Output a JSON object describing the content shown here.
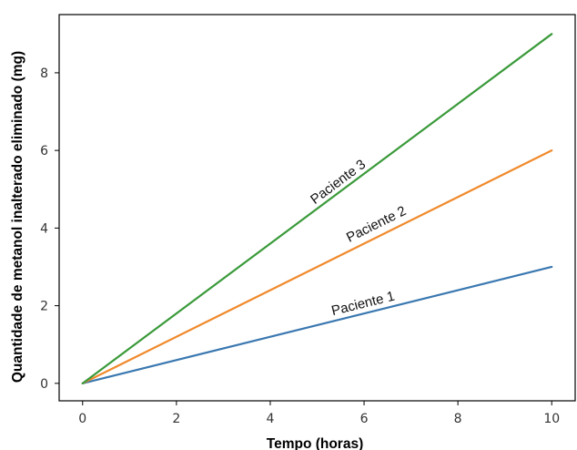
{
  "chart_data": {
    "type": "line",
    "title": "",
    "xlabel": "Tempo (horas)",
    "ylabel": "Quantidade de metanol inalterado eliminado (mg)",
    "xlim": [
      -0.5,
      10.5
    ],
    "ylim": [
      -0.45,
      9.5
    ],
    "xticks": [
      0,
      2,
      4,
      6,
      8,
      10
    ],
    "yticks": [
      0,
      2,
      4,
      6,
      8
    ],
    "grid": false,
    "legend": "none",
    "series": [
      {
        "name": "Paciente 1",
        "color": "#3a78b0",
        "x": [
          0,
          10
        ],
        "y": [
          0,
          3
        ]
      },
      {
        "name": "Paciente 2",
        "color": "#f08a2c",
        "x": [
          0,
          10
        ],
        "y": [
          0,
          6
        ]
      },
      {
        "name": "Paciente 3",
        "color": "#3a9a3a",
        "x": [
          0,
          10
        ],
        "y": [
          0,
          9
        ]
      }
    ],
    "annotations": [
      {
        "text": "Paciente 1",
        "series": 0,
        "x": 6.0,
        "y": 1.95
      },
      {
        "text": "Paciente 2",
        "series": 1,
        "x": 6.3,
        "y": 4.0
      },
      {
        "text": "Paciente 3",
        "series": 2,
        "x": 5.5,
        "y": 5.1
      }
    ]
  }
}
